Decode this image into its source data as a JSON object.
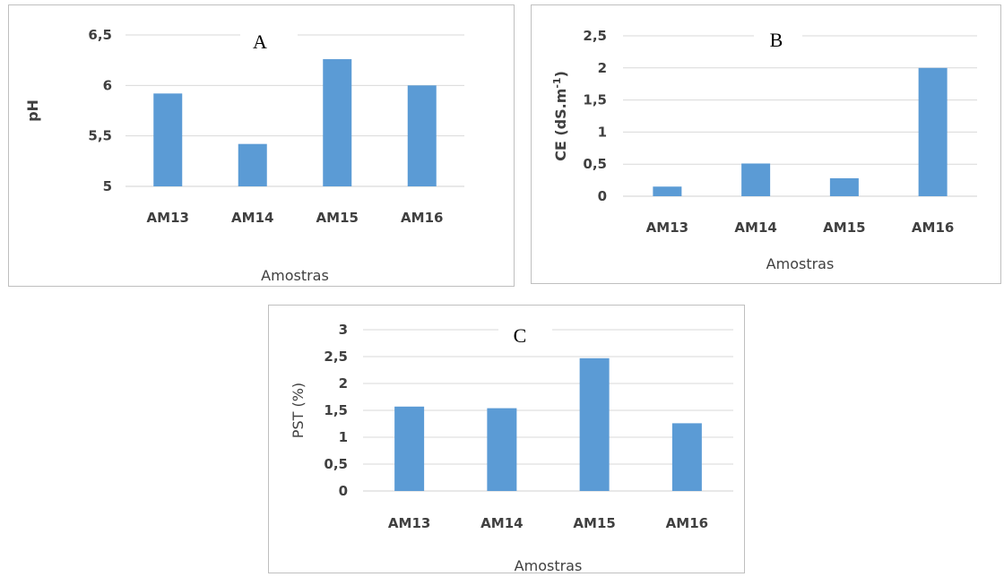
{
  "colors": {
    "bar": "#5b9bd5",
    "grid": "#d9d9d9",
    "text": "#404040"
  },
  "chart_data": [
    {
      "id": "a",
      "type": "bar",
      "title": "A",
      "xlabel": "Amostras",
      "ylabel": "pH",
      "categories": [
        "AM13",
        "AM14",
        "AM15",
        "AM16"
      ],
      "values": [
        5.92,
        5.42,
        6.26,
        6.0
      ],
      "ylim": [
        5,
        6.5
      ],
      "yticks": [
        5,
        5.5,
        6,
        6.5
      ],
      "ytick_labels": [
        "5",
        "5,5",
        "6",
        "6,5"
      ],
      "grid": true,
      "legend": false
    },
    {
      "id": "b",
      "type": "bar",
      "title": "B",
      "xlabel": "Amostras",
      "ylabel": "CE (dS.m",
      "ylabel_sup": "-1",
      "ylabel_tail": ")",
      "categories": [
        "AM13",
        "AM14",
        "AM15",
        "AM16"
      ],
      "values": [
        0.15,
        0.51,
        0.28,
        2.0
      ],
      "ylim": [
        0,
        2.5
      ],
      "yticks": [
        0,
        0.5,
        1,
        1.5,
        2,
        2.5
      ],
      "ytick_labels": [
        "0",
        "0,5",
        "1",
        "1,5",
        "2",
        "2,5"
      ],
      "grid": true,
      "legend": false
    },
    {
      "id": "c",
      "type": "bar",
      "title": "C",
      "xlabel": "Amostras",
      "ylabel": "PST (%)",
      "categories": [
        "AM13",
        "AM14",
        "AM15",
        "AM16"
      ],
      "values": [
        1.57,
        1.54,
        2.47,
        1.26
      ],
      "ylim": [
        0,
        3
      ],
      "yticks": [
        0,
        0.5,
        1,
        1.5,
        2,
        2.5,
        3
      ],
      "ytick_labels": [
        "0",
        "0,5",
        "1",
        "1,5",
        "2",
        "2,5",
        "3"
      ],
      "grid": true,
      "legend": false
    }
  ]
}
